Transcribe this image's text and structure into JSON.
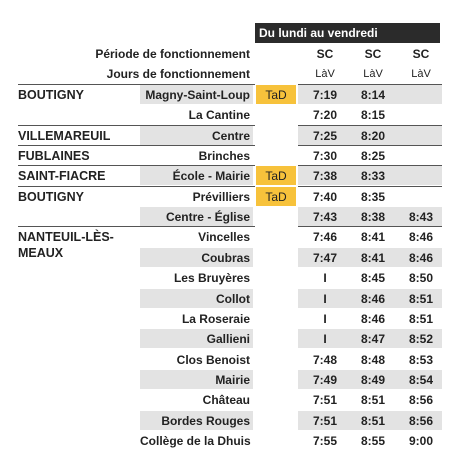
{
  "header": {
    "band": "Du lundi au vendredi",
    "period_label": "Période de fonctionnement",
    "days_label": "Jours de fonctionnement",
    "periods": [
      "SC",
      "SC",
      "SC"
    ],
    "days": [
      "LàV",
      "LàV",
      "LàV"
    ]
  },
  "rows": [
    {
      "commune": "BOUTIGNY",
      "stop": "Magny-Saint-Loup",
      "tad": "TaD",
      "times": [
        "7:19",
        "8:14",
        null
      ]
    },
    {
      "stop": "La Cantine",
      "times": [
        "7:20",
        "8:15",
        null
      ]
    },
    {
      "commune": "VILLEMAREUIL",
      "stop": "Centre",
      "times": [
        "7:25",
        "8:20",
        null
      ]
    },
    {
      "commune": "FUBLAINES",
      "stop": "Brinches",
      "times": [
        "7:30",
        "8:25",
        null
      ]
    },
    {
      "commune": "SAINT-FIACRE",
      "stop": "École - Mairie",
      "tad": "TaD",
      "times": [
        "7:38",
        "8:33",
        null
      ]
    },
    {
      "commune": "BOUTIGNY",
      "stop": "Prévilliers",
      "tad": "TaD",
      "times": [
        "7:40",
        "8:35",
        null
      ]
    },
    {
      "stop": "Centre - Église",
      "times": [
        "7:43",
        "8:38",
        "8:43"
      ]
    },
    {
      "commune": "NANTEUIL-LÈS-MEAUX",
      "stop": "Vincelles",
      "times": [
        "7:46",
        "8:41",
        "8:46"
      ]
    },
    {
      "stop": "Coubras",
      "times": [
        "7:47",
        "8:41",
        "8:46"
      ]
    },
    {
      "stop": "Les Bruyères",
      "times": [
        "I",
        "8:45",
        "8:50"
      ]
    },
    {
      "stop": "Collot",
      "times": [
        "I",
        "8:46",
        "8:51"
      ]
    },
    {
      "stop": "La Roseraie",
      "times": [
        "I",
        "8:46",
        "8:51"
      ]
    },
    {
      "stop": "Gallieni",
      "times": [
        "I",
        "8:47",
        "8:52"
      ]
    },
    {
      "stop": "Clos Benoist",
      "times": [
        "7:48",
        "8:48",
        "8:53"
      ]
    },
    {
      "stop": "Mairie",
      "times": [
        "7:49",
        "8:49",
        "8:54"
      ]
    },
    {
      "stop": "Château",
      "times": [
        "7:51",
        "8:51",
        "8:56"
      ]
    },
    {
      "stop": "Bordes Rouges",
      "times": [
        "7:51",
        "8:51",
        "8:56"
      ]
    },
    {
      "stop": "Collège de la Dhuis",
      "times": [
        "7:55",
        "8:55",
        "9:00"
      ]
    }
  ]
}
